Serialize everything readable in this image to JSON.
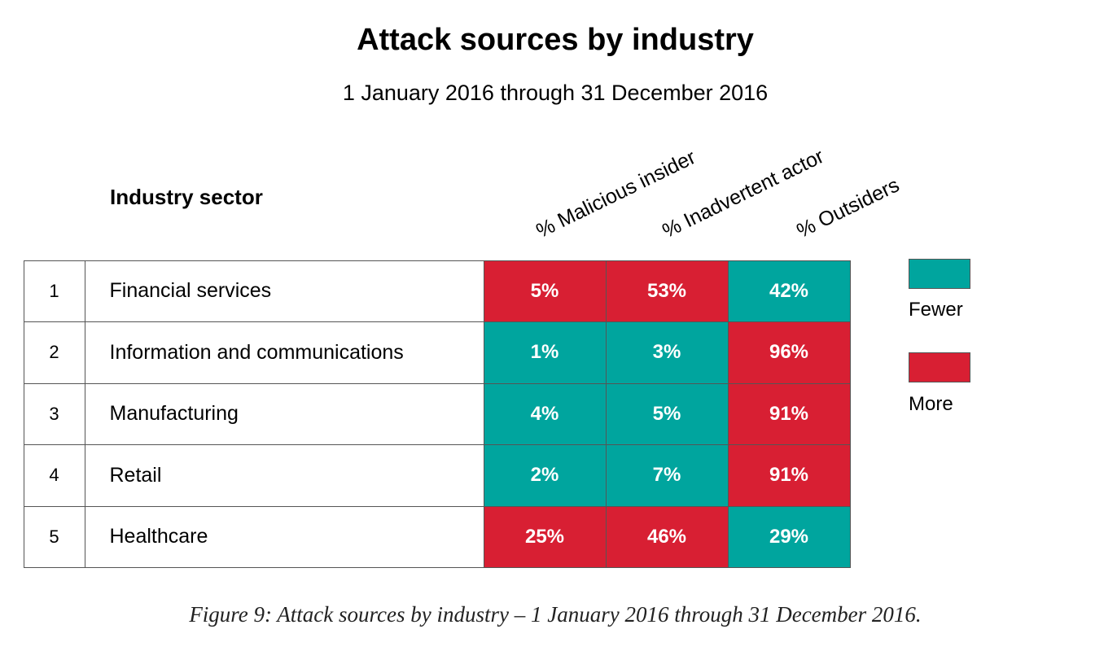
{
  "chart_data": {
    "type": "heatmap",
    "title": "Attack sources by industry",
    "subtitle": "1 January 2016 through 31 December 2016",
    "row_header": "Industry sector",
    "columns": [
      "% Malicious insider",
      "% Inadvertent actor",
      "% Outsiders"
    ],
    "rows": [
      {
        "rank": "1",
        "sector": "Financial services",
        "values": [
          "5%",
          "53%",
          "42%"
        ],
        "levels": [
          "more",
          "more",
          "fewer"
        ]
      },
      {
        "rank": "2",
        "sector": "Information and communications",
        "values": [
          "1%",
          "3%",
          "96%"
        ],
        "levels": [
          "fewer",
          "fewer",
          "more"
        ]
      },
      {
        "rank": "3",
        "sector": "Manufacturing",
        "values": [
          "4%",
          "5%",
          "91%"
        ],
        "levels": [
          "fewer",
          "fewer",
          "more"
        ]
      },
      {
        "rank": "4",
        "sector": "Retail",
        "values": [
          "2%",
          "7%",
          "91%"
        ],
        "levels": [
          "fewer",
          "fewer",
          "more"
        ]
      },
      {
        "rank": "5",
        "sector": "Healthcare",
        "values": [
          "25%",
          "46%",
          "29%"
        ],
        "levels": [
          "more",
          "more",
          "fewer"
        ]
      }
    ],
    "legend": [
      {
        "label": "Fewer",
        "color": "#00A59E"
      },
      {
        "label": "More",
        "color": "#D81F33"
      }
    ],
    "legend_placement": "right"
  },
  "caption": "Figure 9: Attack sources by industry  –  1 January 2016 through 31 December 2016."
}
